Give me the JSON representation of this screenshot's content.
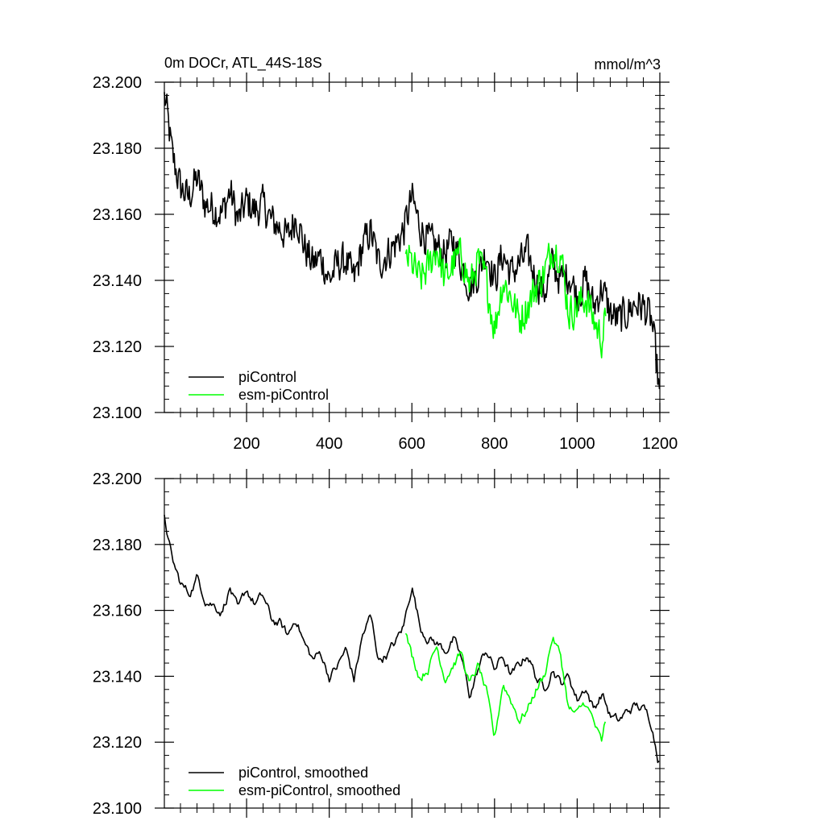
{
  "chart_data": [
    {
      "type": "line",
      "title": "0m DOCr, ATL_44S-18S",
      "units": "mmol/m^3",
      "xlim": [
        1,
        1200
      ],
      "ylim": [
        23.1,
        23.2
      ],
      "xticks": [
        200,
        400,
        600,
        800,
        1000,
        1200
      ],
      "xtick_labels": [
        "200",
        "400",
        "600",
        "800",
        "1000",
        "1200"
      ],
      "yticks": [
        23.1,
        23.12,
        23.14,
        23.16,
        23.18,
        23.2
      ],
      "ytick_labels": [
        "23.100",
        "23.120",
        "23.140",
        "23.160",
        "23.180",
        "23.200"
      ],
      "legend_position": "bottom-left",
      "series": [
        {
          "name": "piControl",
          "color": "#000000",
          "x": [
            1,
            20,
            40,
            60,
            80,
            100,
            120,
            140,
            160,
            180,
            200,
            220,
            240,
            260,
            280,
            300,
            320,
            340,
            360,
            380,
            400,
            420,
            440,
            460,
            480,
            500,
            520,
            540,
            560,
            580,
            600,
            620,
            640,
            660,
            680,
            700,
            720,
            740,
            760,
            780,
            800,
            820,
            840,
            860,
            880,
            900,
            920,
            940,
            960,
            980,
            1000,
            1020,
            1040,
            1060,
            1080,
            1100,
            1120,
            1140,
            1160,
            1180,
            1200
          ],
          "values": [
            23.197,
            23.178,
            23.168,
            23.165,
            23.171,
            23.163,
            23.162,
            23.16,
            23.167,
            23.158,
            23.164,
            23.161,
            23.163,
            23.158,
            23.156,
            23.153,
            23.16,
            23.15,
            23.145,
            23.147,
            23.14,
            23.145,
            23.146,
            23.14,
            23.15,
            23.155,
            23.145,
            23.148,
            23.151,
            23.155,
            23.165,
            23.156,
            23.152,
            23.15,
            23.148,
            23.152,
            23.145,
            23.138,
            23.142,
            23.149,
            23.14,
            23.148,
            23.142,
            23.145,
            23.148,
            23.14,
            23.136,
            23.145,
            23.14,
            23.142,
            23.135,
            23.14,
            23.132,
            23.138,
            23.13,
            23.128,
            23.13,
            23.133,
            23.132,
            23.128,
            23.106
          ]
        },
        {
          "name": "esm-piControl",
          "color": "#00ff00",
          "x": [
            585,
            600,
            620,
            640,
            660,
            680,
            700,
            720,
            740,
            760,
            780,
            800,
            820,
            840,
            860,
            880,
            900,
            920,
            940,
            960,
            980,
            1000,
            1020,
            1040,
            1060,
            1070
          ],
          "values": [
            23.148,
            23.145,
            23.14,
            23.144,
            23.15,
            23.14,
            23.145,
            23.148,
            23.138,
            23.146,
            23.14,
            23.125,
            23.14,
            23.135,
            23.128,
            23.132,
            23.138,
            23.142,
            23.15,
            23.148,
            23.13,
            23.132,
            23.135,
            23.128,
            23.122,
            23.13
          ]
        }
      ]
    },
    {
      "type": "line",
      "xlim": [
        1,
        1200
      ],
      "ylim": [
        23.1,
        23.2
      ],
      "xticks": [
        200,
        400,
        600,
        800,
        1000,
        1200
      ],
      "yticks": [
        23.1,
        23.12,
        23.14,
        23.16,
        23.18,
        23.2
      ],
      "ytick_labels": [
        "23.100",
        "23.120",
        "23.140",
        "23.160",
        "23.180",
        "23.200"
      ],
      "legend_position": "bottom-left",
      "series": [
        {
          "name": "piControl, smoothed",
          "color": "#000000",
          "x": [
            1,
            20,
            40,
            60,
            80,
            100,
            120,
            140,
            160,
            180,
            200,
            220,
            240,
            260,
            280,
            300,
            320,
            340,
            360,
            380,
            400,
            420,
            440,
            460,
            480,
            500,
            520,
            540,
            560,
            580,
            600,
            620,
            640,
            660,
            680,
            700,
            720,
            740,
            760,
            780,
            800,
            820,
            840,
            860,
            880,
            900,
            920,
            940,
            960,
            980,
            1000,
            1020,
            1040,
            1060,
            1080,
            1100,
            1120,
            1140,
            1160,
            1180,
            1200
          ],
          "values": [
            23.189,
            23.175,
            23.168,
            23.165,
            23.17,
            23.164,
            23.162,
            23.16,
            23.167,
            23.159,
            23.166,
            23.162,
            23.164,
            23.157,
            23.156,
            23.152,
            23.158,
            23.15,
            23.145,
            23.147,
            23.14,
            23.143,
            23.148,
            23.139,
            23.152,
            23.158,
            23.145,
            23.147,
            23.15,
            23.155,
            23.168,
            23.155,
            23.152,
            23.15,
            23.148,
            23.151,
            23.145,
            23.134,
            23.142,
            23.148,
            23.142,
            23.146,
            23.14,
            23.143,
            23.147,
            23.14,
            23.136,
            23.143,
            23.138,
            23.14,
            23.133,
            23.137,
            23.13,
            23.135,
            23.128,
            23.126,
            23.129,
            23.131,
            23.13,
            23.126,
            23.113
          ]
        },
        {
          "name": "esm-piControl, smoothed",
          "color": "#00ff00",
          "x": [
            585,
            600,
            620,
            640,
            660,
            680,
            700,
            720,
            740,
            760,
            780,
            800,
            820,
            840,
            860,
            880,
            900,
            920,
            940,
            960,
            980,
            1000,
            1020,
            1040,
            1060,
            1070
          ],
          "values": [
            23.153,
            23.146,
            23.14,
            23.143,
            23.149,
            23.14,
            23.144,
            23.147,
            23.137,
            23.143,
            23.135,
            23.12,
            23.138,
            23.133,
            23.127,
            23.13,
            23.136,
            23.14,
            23.152,
            23.146,
            23.13,
            23.128,
            23.132,
            23.126,
            23.119,
            23.128
          ]
        }
      ]
    }
  ]
}
